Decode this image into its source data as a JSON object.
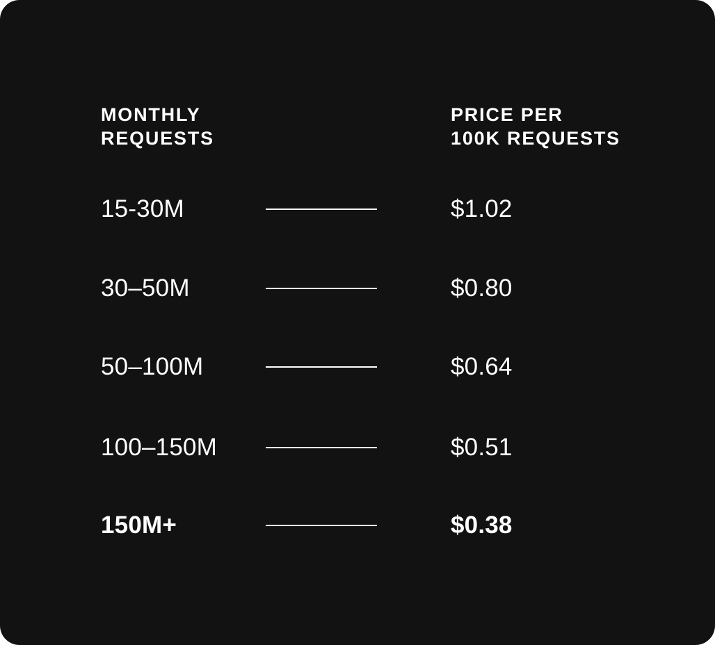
{
  "header": {
    "requests_line1": "MONTHLY",
    "requests_line2": "REQUESTS",
    "price_line1": "PRICE PER",
    "price_line2": "100K REQUESTS"
  },
  "tiers": [
    {
      "range": "15-30M",
      "price": "$1.02"
    },
    {
      "range": "30–50M",
      "price": "$0.80"
    },
    {
      "range": "50–100M",
      "price": "$0.64"
    },
    {
      "range": "100–150M",
      "price": "$0.51"
    },
    {
      "range": "150M+",
      "price": "$0.38",
      "highlighted": true
    }
  ],
  "colors": {
    "background": "#121212",
    "text": "#ffffff"
  }
}
